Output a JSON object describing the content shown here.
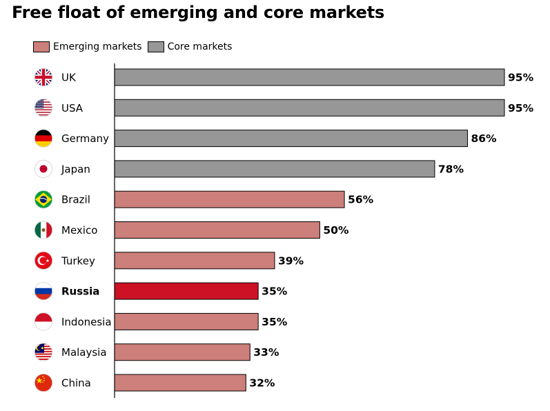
{
  "title": "Free float of emerging and core markets",
  "colors": {
    "emerging": "#cd7f7b",
    "core": "#979797",
    "highlight": "#cc1224",
    "axis": "#000000"
  },
  "legend": [
    {
      "label": "Emerging markets",
      "series": "emerging"
    },
    {
      "label": "Core markets",
      "series": "core"
    }
  ],
  "chart_data": {
    "type": "bar",
    "orientation": "horizontal",
    "title": "Free float of emerging and core markets",
    "categories": [
      "UK",
      "USA",
      "Germany",
      "Japan",
      "Brazil",
      "Mexico",
      "Turkey",
      "Russia",
      "Indonesia",
      "Malaysia",
      "China"
    ],
    "values": [
      95,
      95,
      86,
      78,
      56,
      50,
      39,
      35,
      35,
      33,
      32
    ],
    "value_labels": [
      "95%",
      "95%",
      "86%",
      "78%",
      "56%",
      "50%",
      "39%",
      "35%",
      "35%",
      "33%",
      "32%"
    ],
    "groups": [
      "core",
      "core",
      "core",
      "core",
      "emerging",
      "emerging",
      "emerging",
      "emerging",
      "emerging",
      "emerging",
      "emerging"
    ],
    "highlighted": [
      "Russia"
    ],
    "flag_icons": [
      "uk-flag-icon",
      "usa-flag-icon",
      "germany-flag-icon",
      "japan-flag-icon",
      "brazil-flag-icon",
      "mexico-flag-icon",
      "turkey-flag-icon",
      "russia-flag-icon",
      "indonesia-flag-icon",
      "malaysia-flag-icon",
      "china-flag-icon"
    ],
    "series": [
      {
        "name": "Emerging markets",
        "categories": [
          "Brazil",
          "Mexico",
          "Turkey",
          "Russia",
          "Indonesia",
          "Malaysia",
          "China"
        ]
      },
      {
        "name": "Core markets",
        "categories": [
          "UK",
          "USA",
          "Germany",
          "Japan"
        ]
      }
    ],
    "xlim": [
      0,
      95
    ],
    "unit": "%",
    "grid": false,
    "legend_position": "top-left"
  }
}
